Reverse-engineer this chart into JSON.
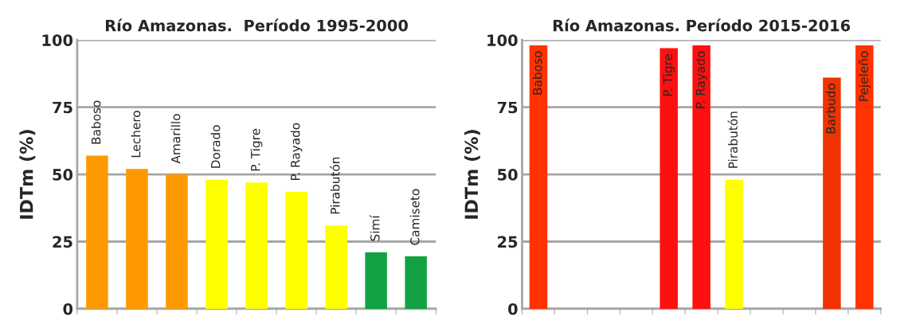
{
  "chart_data": [
    {
      "type": "bar",
      "title": "Río Amazonas.  Período 1995-2000",
      "ylabel": "IDTm (%)",
      "categories": [
        "Baboso",
        "Lechero",
        "Amarillo",
        "Dorado",
        "P. Tigre",
        "P. Rayado",
        "Pirabutón",
        "Simí",
        "Camiseto"
      ],
      "values": [
        57,
        52,
        50,
        48,
        47,
        43.5,
        31,
        21,
        19.5
      ],
      "colors": [
        "#ff9900",
        "#ff9900",
        "#ff9900",
        "#ffff00",
        "#ffff00",
        "#ffff00",
        "#ffff00",
        "#12a244",
        "#12a244"
      ],
      "ylim": [
        0,
        100
      ],
      "yticks": [
        0,
        25,
        50,
        75,
        100
      ],
      "grid": "y",
      "tick_labels": "y"
    },
    {
      "type": "bar",
      "title": "Río Amazonas. Período 2015-2016",
      "ylabel": "IDTm (%)",
      "categories": [
        "Baboso",
        null,
        null,
        null,
        "P. Tigre",
        "P. Rayado",
        "Pirabutón",
        null,
        null,
        "Barbudo",
        "Pejeleño"
      ],
      "values": [
        98,
        null,
        null,
        null,
        97,
        98,
        48,
        null,
        null,
        86,
        98
      ],
      "colors": [
        "#ff3300",
        null,
        null,
        null,
        "#ff1010",
        "#ff1010",
        "#ffff00",
        null,
        null,
        "#f03300",
        "#ff3300"
      ],
      "ylim": [
        0,
        100
      ],
      "yticks": [
        0,
        25,
        50,
        75,
        100
      ],
      "grid": "y",
      "tick_labels": "y"
    }
  ]
}
